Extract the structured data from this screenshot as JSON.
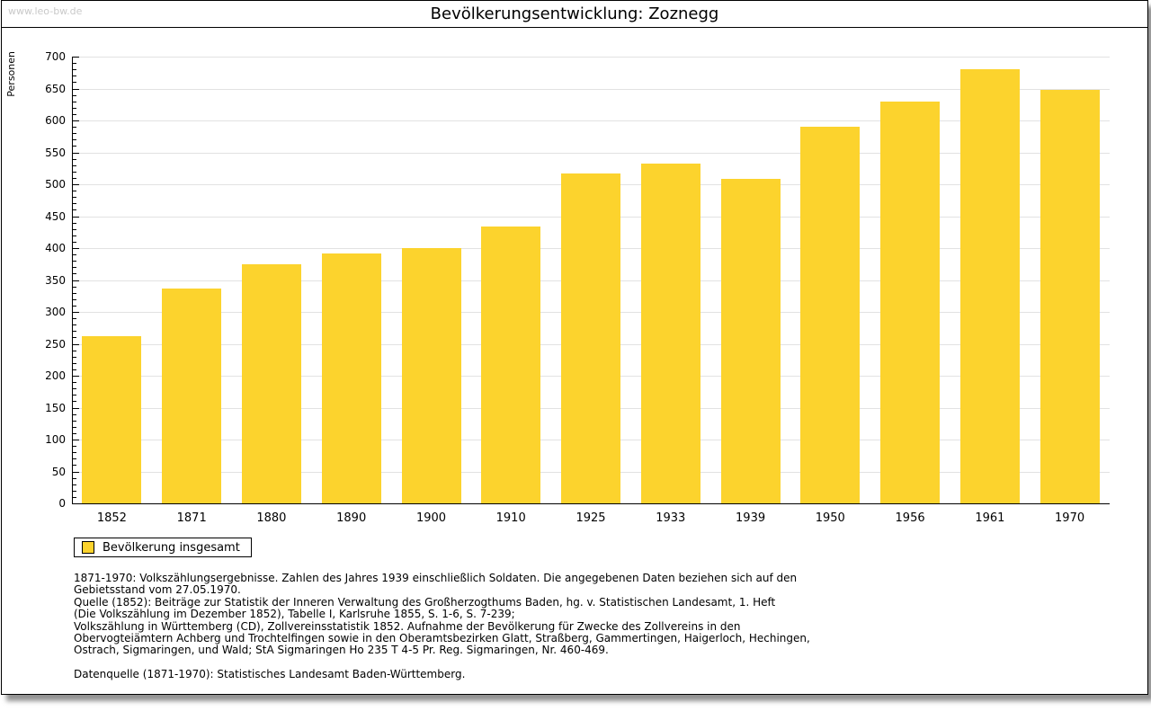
{
  "page": {
    "watermark": "www.leo-bw.de",
    "title": "Bevölkerungsentwicklung: Zoznegg"
  },
  "chart_data": {
    "type": "bar",
    "title": "Bevölkerungsentwicklung: Zoznegg",
    "ylabel": "Personen",
    "categories": [
      "1852",
      "1871",
      "1880",
      "1890",
      "1900",
      "1910",
      "1925",
      "1933",
      "1939",
      "1950",
      "1956",
      "1961",
      "1970"
    ],
    "values": [
      262,
      336,
      375,
      392,
      400,
      434,
      517,
      533,
      509,
      590,
      630,
      681,
      648
    ],
    "ylim": [
      0,
      700
    ],
    "ytick_step": 50,
    "minor_tick_step": 10,
    "grid": true,
    "grid_color": "#e2e2e2",
    "bar_color": "#FCD32D",
    "legend_position": "bottom-left",
    "legend": [
      "Bevölkerung insgesamt"
    ]
  },
  "legend": {
    "label": "Bevölkerung insgesamt"
  },
  "notes": {
    "lines": [
      "1871-1970: Volkszählungsergebnisse. Zahlen des Jahres 1939 einschließlich Soldaten. Die angegebenen Daten beziehen sich auf den",
      "Gebietsstand vom 27.05.1970.",
      "Quelle (1852): Beiträge zur Statistik der Inneren Verwaltung des Großherzogthums Baden, hg. v. Statistischen Landesamt, 1. Heft",
      "(Die Volkszählung im Dezember 1852), Tabelle I, Karlsruhe 1855, S. 1-6, S. 7-239;",
      "Volkszählung in Württemberg (CD), Zollvereinsstatistik 1852. Aufnahme der Bevölkerung für Zwecke des Zollvereins in den",
      "Obervogteiämtern Achberg und Trochtelfingen sowie in den Oberamtsbezirken Glatt, Straßberg, Gammertingen, Haigerloch, Hechingen,",
      "Ostrach, Sigmaringen, und Wald; StA Sigmaringen Ho 235 T 4-5 Pr. Reg. Sigmaringen, Nr. 460-469."
    ],
    "datasource": "Datenquelle (1871-1970): Statistisches Landesamt Baden-Württemberg."
  }
}
